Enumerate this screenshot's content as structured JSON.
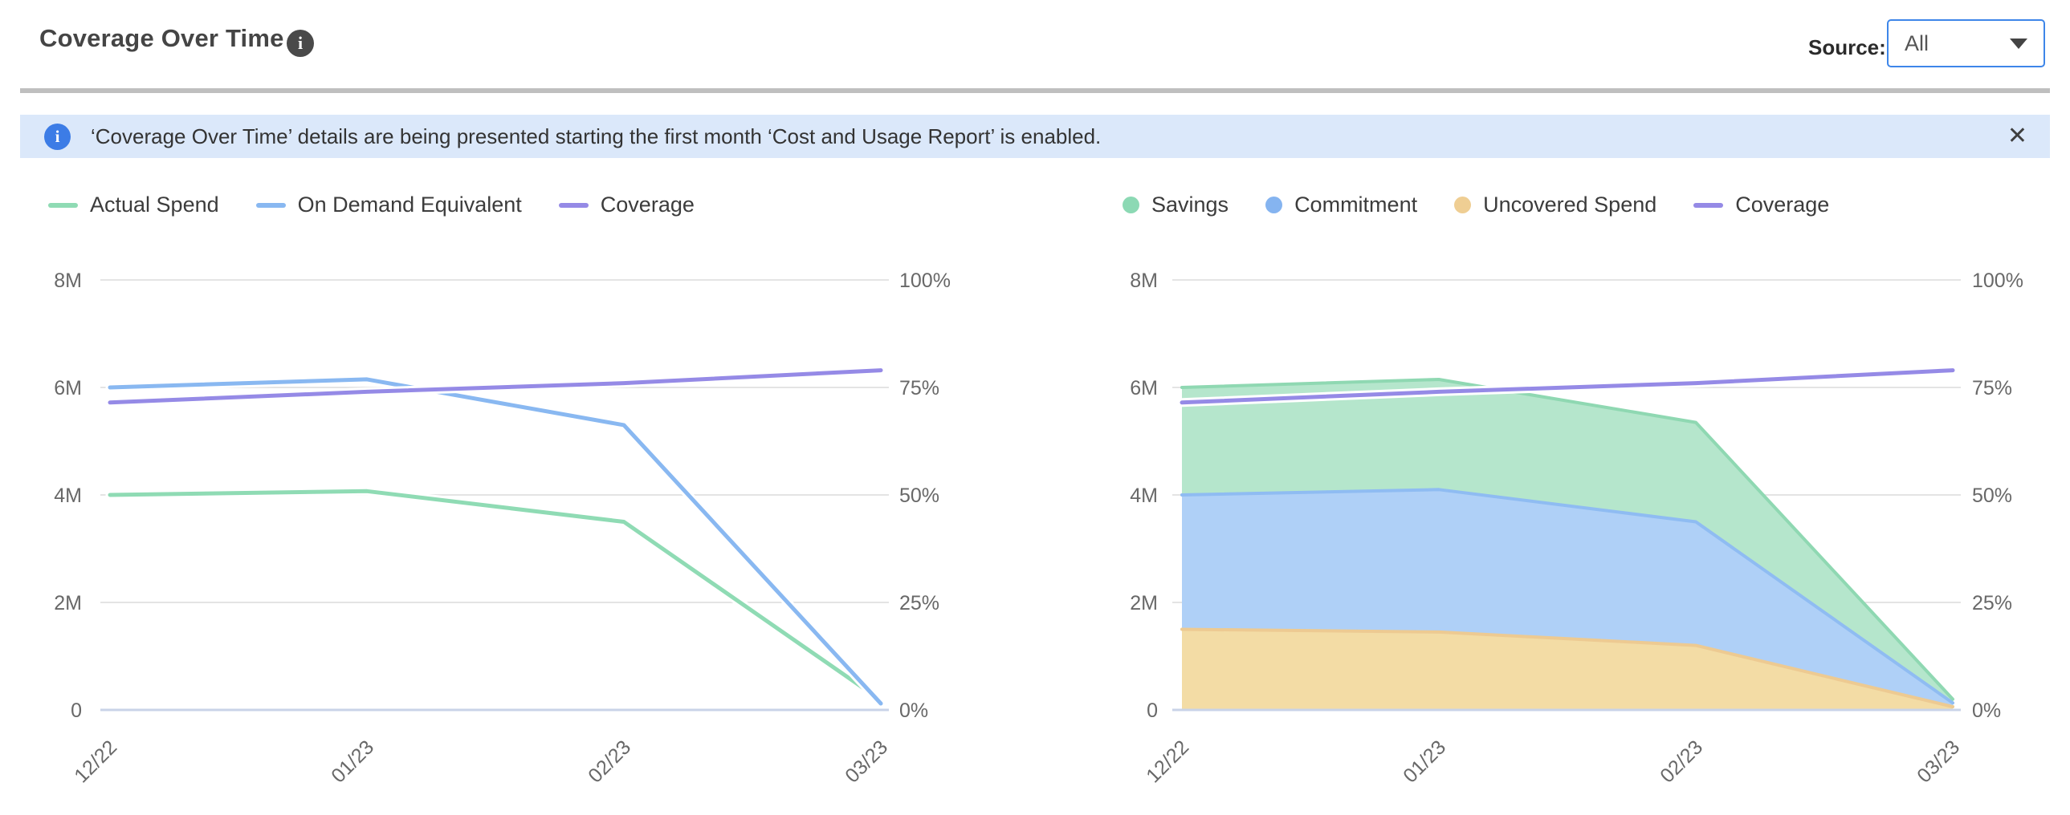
{
  "header": {
    "title": "Coverage Over Time",
    "info_glyph": "i",
    "source_label": "Source:",
    "source_value": "All"
  },
  "banner": {
    "info_glyph": "i",
    "text": "‘Coverage Over Time’ details are being presented starting the first month ‘Cost and Usage Report’ is enabled.",
    "close": "✕"
  },
  "colors": {
    "banner_bg": "#DBE8FA",
    "banner_icon": "#3C7CE6",
    "dropdown_border": "#3E86E9",
    "divider": "#BFBFBF",
    "grid": "#E4E4E4",
    "axis_line": "#C9D3E8",
    "axis_text": "#686868"
  },
  "chart_data": [
    {
      "type": "line",
      "title": "Actual Spend vs On Demand Equivalent with Coverage",
      "x": [
        "12/22",
        "01/23",
        "02/23",
        "03/23"
      ],
      "grid": true,
      "legend_position": "top-left",
      "y_left": {
        "unit": "USD millions",
        "range": [
          0,
          8
        ],
        "ticks": [
          "0",
          "2M",
          "4M",
          "6M",
          "8M"
        ]
      },
      "y_right": {
        "unit": "percent",
        "range": [
          0,
          100
        ],
        "ticks": [
          "0%",
          "25%",
          "50%",
          "75%",
          "100%"
        ]
      },
      "series": [
        {
          "name": "Actual Spend",
          "axis": "left",
          "color": "#8FDBB4",
          "halo": true,
          "values_millions": [
            4.0,
            4.07,
            3.5,
            0.18
          ]
        },
        {
          "name": "On Demand Equivalent",
          "axis": "left",
          "color": "#89B8F1",
          "halo": true,
          "values_millions": [
            6.0,
            6.15,
            5.3,
            0.12
          ]
        },
        {
          "name": "Coverage",
          "axis": "right",
          "color": "#958AE6",
          "halo": true,
          "values_pct": [
            71.5,
            74,
            76,
            79
          ]
        }
      ],
      "legend": [
        {
          "label": "Actual Spend",
          "color": "#8FDBB4",
          "shape": "line"
        },
        {
          "label": "On Demand Equivalent",
          "color": "#89B8F1",
          "shape": "line"
        },
        {
          "label": "Coverage",
          "color": "#958AE6",
          "shape": "line"
        }
      ]
    },
    {
      "type": "area",
      "stacked": true,
      "title": "Savings / Commitment / Uncovered Spend with Coverage",
      "x": [
        "12/22",
        "01/23",
        "02/23",
        "03/23"
      ],
      "grid": true,
      "legend_position": "top-left",
      "y_left": {
        "unit": "USD millions",
        "range": [
          0,
          8
        ],
        "ticks": [
          "0",
          "2M",
          "4M",
          "6M",
          "8M"
        ]
      },
      "y_right": {
        "unit": "percent",
        "range": [
          0,
          100
        ],
        "ticks": [
          "0%",
          "25%",
          "50%",
          "75%",
          "100%"
        ]
      },
      "series": [
        {
          "name": "Uncovered Spend",
          "axis": "left",
          "color_fill": "#F3DCA5",
          "color_edge": "#EDCA92",
          "values_millions": [
            1.5,
            1.45,
            1.2,
            0.06
          ]
        },
        {
          "name": "Commitment",
          "axis": "left",
          "color_fill": "#AFD0F7",
          "color_edge": "#8FBCF2",
          "values_millions": [
            2.5,
            2.65,
            2.3,
            0.07
          ]
        },
        {
          "name": "Savings",
          "axis": "left",
          "color_fill": "#B5E6CC",
          "color_edge": "#8FD8B2",
          "values_millions": [
            2.0,
            2.05,
            1.85,
            0.07
          ]
        },
        {
          "name": "Coverage",
          "axis": "right",
          "color": "#958AE6",
          "halo": true,
          "values_pct": [
            71.5,
            74,
            76,
            79
          ]
        }
      ],
      "legend": [
        {
          "label": "Savings",
          "color": "#8CD9B4",
          "shape": "circle"
        },
        {
          "label": "Commitment",
          "color": "#85B4F0",
          "shape": "circle"
        },
        {
          "label": "Uncovered Spend",
          "color": "#EFCE93",
          "shape": "circle"
        },
        {
          "label": "Coverage",
          "color": "#958AE6",
          "shape": "line"
        }
      ]
    }
  ]
}
